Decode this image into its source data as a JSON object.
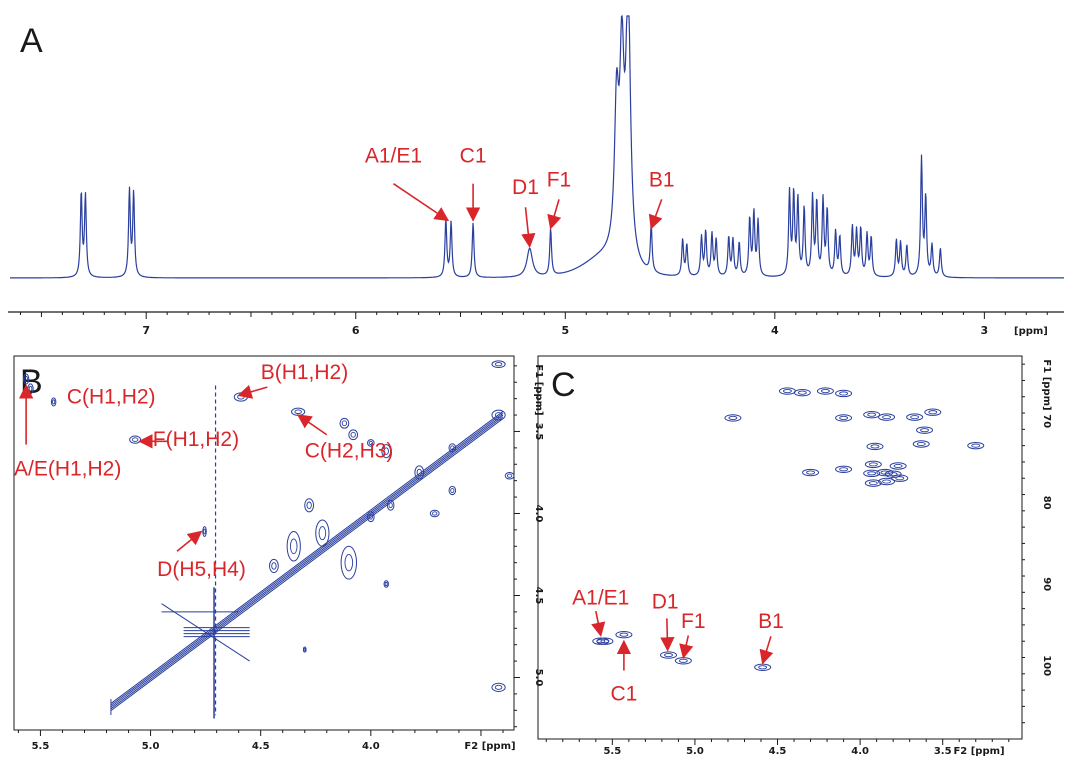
{
  "colors": {
    "spectrum": "#2a3f9e",
    "contour": "#2a3f9e",
    "annotation": "#d9262a",
    "axis": "#1a1a1a"
  },
  "chart_data": [
    {
      "type": "line",
      "panel": "A",
      "xlabel": "[ppm]",
      "xlim": [
        7.65,
        2.62
      ],
      "x_ticks": [
        7,
        6,
        5,
        4,
        3
      ],
      "peaks": [
        {
          "ppm": 7.29,
          "h": 0.31
        },
        {
          "ppm": 7.31,
          "h": 0.32
        },
        {
          "ppm": 7.06,
          "h": 0.32
        },
        {
          "ppm": 7.08,
          "h": 0.33
        },
        {
          "ppm": 5.57,
          "h": 0.22
        },
        {
          "ppm": 5.545,
          "h": 0.21
        },
        {
          "ppm": 5.44,
          "h": 0.21
        },
        {
          "ppm": 5.17,
          "h": 0.11,
          "w": 0.016
        },
        {
          "ppm": 5.07,
          "h": 0.18
        },
        {
          "ppm": 4.755,
          "h": 0.55,
          "w": 0.012
        },
        {
          "ppm": 4.7,
          "h": 1.0,
          "w": 0.013
        },
        {
          "ppm": 4.73,
          "h": 0.7,
          "w": 0.012
        },
        {
          "ppm": 4.59,
          "h": 0.18
        },
        {
          "ppm": 4.44,
          "h": 0.14
        },
        {
          "ppm": 4.42,
          "h": 0.12
        },
        {
          "ppm": 4.35,
          "h": 0.15
        },
        {
          "ppm": 4.33,
          "h": 0.17
        },
        {
          "ppm": 4.3,
          "h": 0.16
        },
        {
          "ppm": 4.28,
          "h": 0.14
        },
        {
          "ppm": 4.22,
          "h": 0.15
        },
        {
          "ppm": 4.2,
          "h": 0.14
        },
        {
          "ppm": 4.17,
          "h": 0.13
        },
        {
          "ppm": 4.12,
          "h": 0.22
        },
        {
          "ppm": 4.1,
          "h": 0.24
        },
        {
          "ppm": 4.08,
          "h": 0.21
        },
        {
          "ppm": 3.93,
          "h": 0.32
        },
        {
          "ppm": 3.91,
          "h": 0.31
        },
        {
          "ppm": 3.89,
          "h": 0.29
        },
        {
          "ppm": 3.86,
          "h": 0.26
        },
        {
          "ppm": 3.82,
          "h": 0.3
        },
        {
          "ppm": 3.8,
          "h": 0.28
        },
        {
          "ppm": 3.77,
          "h": 0.29
        },
        {
          "ppm": 3.75,
          "h": 0.25
        },
        {
          "ppm": 3.71,
          "h": 0.17
        },
        {
          "ppm": 3.69,
          "h": 0.15
        },
        {
          "ppm": 3.63,
          "h": 0.19
        },
        {
          "ppm": 3.61,
          "h": 0.17
        },
        {
          "ppm": 3.59,
          "h": 0.18
        },
        {
          "ppm": 3.56,
          "h": 0.16
        },
        {
          "ppm": 3.54,
          "h": 0.15
        },
        {
          "ppm": 3.42,
          "h": 0.14
        },
        {
          "ppm": 3.4,
          "h": 0.13
        },
        {
          "ppm": 3.37,
          "h": 0.12
        },
        {
          "ppm": 3.3,
          "h": 0.45
        },
        {
          "ppm": 3.28,
          "h": 0.3
        },
        {
          "ppm": 3.25,
          "h": 0.12
        },
        {
          "ppm": 3.21,
          "h": 0.11
        }
      ],
      "broad": [
        {
          "ppm": 4.8,
          "h": 0.05,
          "w": 0.12
        },
        {
          "ppm": 4.85,
          "h": 0.025,
          "w": 0.18
        }
      ],
      "annotations": [
        {
          "label": "A1/E1",
          "ppm": 5.56,
          "text_ppm": 5.82,
          "text_h": 0.44,
          "tail_h": 0.36,
          "head_h": 0.22
        },
        {
          "label": "C1",
          "ppm": 5.44,
          "text_ppm": 5.44,
          "text_h": 0.44,
          "tail_h": 0.36,
          "head_h": 0.22
        },
        {
          "label": "D1",
          "ppm": 5.17,
          "text_ppm": 5.19,
          "text_h": 0.32,
          "tail_h": 0.27,
          "head_h": 0.12
        },
        {
          "label": "F1",
          "ppm": 5.07,
          "text_ppm": 5.03,
          "text_h": 0.35,
          "tail_h": 0.3,
          "head_h": 0.19
        },
        {
          "label": "B1",
          "ppm": 4.59,
          "text_ppm": 4.54,
          "text_h": 0.35,
          "tail_h": 0.3,
          "head_h": 0.19
        }
      ]
    },
    {
      "type": "heatmap",
      "panel": "B",
      "description": "COSY contour plot",
      "xlabel": "F2 [ppm]",
      "ylabel": "F1 [ppm]",
      "xlim": [
        5.62,
        3.35
      ],
      "ylim": [
        3.04,
        5.32
      ],
      "x_ticks": [
        5.5,
        5.0,
        4.5,
        4.0
      ],
      "y_ticks": [
        3.5,
        4.0,
        4.5,
        5.0
      ],
      "diagonal": [
        5.18,
        3.4
      ],
      "crosspeaks": [
        {
          "x": 5.565,
          "y": 3.18,
          "rx": 0.012,
          "ry": 0.03
        },
        {
          "x": 5.545,
          "y": 3.24,
          "rx": 0.012,
          "ry": 0.03
        },
        {
          "x": 5.44,
          "y": 3.32,
          "rx": 0.01,
          "ry": 0.025
        },
        {
          "x": 5.07,
          "y": 3.55,
          "rx": 0.025,
          "ry": 0.022
        },
        {
          "x": 4.59,
          "y": 3.29,
          "rx": 0.03,
          "ry": 0.025
        },
        {
          "x": 4.33,
          "y": 3.38,
          "rx": 0.03,
          "ry": 0.022
        },
        {
          "x": 4.755,
          "y": 4.11,
          "rx": 0.008,
          "ry": 0.03
        },
        {
          "x": 4.12,
          "y": 3.45,
          "rx": 0.02,
          "ry": 0.03
        },
        {
          "x": 4.08,
          "y": 3.52,
          "rx": 0.02,
          "ry": 0.03
        },
        {
          "x": 3.93,
          "y": 3.62,
          "rx": 0.02,
          "ry": 0.04
        },
        {
          "x": 3.91,
          "y": 3.95,
          "rx": 0.015,
          "ry": 0.03
        },
        {
          "x": 3.93,
          "y": 4.43,
          "rx": 0.01,
          "ry": 0.02
        },
        {
          "x": 3.71,
          "y": 4.0,
          "rx": 0.02,
          "ry": 0.02
        },
        {
          "x": 3.63,
          "y": 3.86,
          "rx": 0.015,
          "ry": 0.025
        },
        {
          "x": 3.63,
          "y": 3.6,
          "rx": 0.015,
          "ry": 0.025
        },
        {
          "x": 3.42,
          "y": 3.09,
          "rx": 0.03,
          "ry": 0.02
        },
        {
          "x": 3.42,
          "y": 3.4,
          "rx": 0.03,
          "ry": 0.03
        },
        {
          "x": 3.37,
          "y": 3.77,
          "rx": 0.02,
          "ry": 0.02
        },
        {
          "x": 3.42,
          "y": 5.06,
          "rx": 0.03,
          "ry": 0.025
        },
        {
          "x": 4.22,
          "y": 4.12,
          "rx": 0.03,
          "ry": 0.08
        },
        {
          "x": 4.35,
          "y": 4.2,
          "rx": 0.03,
          "ry": 0.09
        },
        {
          "x": 4.1,
          "y": 4.3,
          "rx": 0.035,
          "ry": 0.1
        },
        {
          "x": 4.44,
          "y": 4.32,
          "rx": 0.02,
          "ry": 0.04
        },
        {
          "x": 4.28,
          "y": 3.95,
          "rx": 0.02,
          "ry": 0.04
        },
        {
          "x": 4.0,
          "y": 4.02,
          "rx": 0.015,
          "ry": 0.03
        },
        {
          "x": 4.3,
          "y": 4.83,
          "rx": 0.006,
          "ry": 0.015
        },
        {
          "x": 4.0,
          "y": 3.57,
          "rx": 0.015,
          "ry": 0.02
        },
        {
          "x": 3.78,
          "y": 3.75,
          "rx": 0.02,
          "ry": 0.04
        }
      ],
      "annotations": [
        {
          "label": "B(H1,H2)",
          "tx": 4.5,
          "ty": 3.18,
          "hx": 4.6,
          "hy": 3.28,
          "tailx": 4.47,
          "taily": 3.23
        },
        {
          "label": "C(H1,H2)",
          "tx": 5.38,
          "ty": 3.33,
          "hx": 5.44,
          "hy": 3.32,
          "tailx": 5.44,
          "taily": 3.32,
          "no_arrow": true
        },
        {
          "label": "F(H1,H2)",
          "tx": 4.99,
          "ty": 3.59,
          "hx": 5.05,
          "hy": 3.56,
          "tailx": 4.92,
          "taily": 3.56
        },
        {
          "label": "C(H2,H3)",
          "tx": 4.3,
          "ty": 3.66,
          "hx": 4.33,
          "hy": 3.4,
          "tailx": 4.2,
          "taily": 3.52
        },
        {
          "label": "A/E(H1,H2)",
          "tx": 5.62,
          "ty": 3.77,
          "hx": 5.565,
          "hy": 3.22,
          "tailx": 5.565,
          "taily": 3.58
        },
        {
          "label": "D(H5,H4)",
          "tx": 4.97,
          "ty": 4.38,
          "hx": 4.77,
          "hy": 4.11,
          "tailx": 4.88,
          "taily": 4.23
        }
      ]
    },
    {
      "type": "heatmap",
      "panel": "C",
      "description": "HSQC contour plot",
      "xlabel": "F2 [ppm]",
      "ylabel": "F1 [ppm]",
      "xlim": [
        5.95,
        3.02
      ],
      "ylim": [
        62.0,
        109.0
      ],
      "x_ticks": [
        5.5,
        5.0,
        4.5,
        4.0,
        3.5
      ],
      "y_ticks": [
        70,
        80,
        90,
        100
      ],
      "crosspeaks": [
        {
          "x": 5.57,
          "y": 97.0
        },
        {
          "x": 5.545,
          "y": 97.0
        },
        {
          "x": 5.43,
          "y": 96.2
        },
        {
          "x": 5.16,
          "y": 98.7
        },
        {
          "x": 5.07,
          "y": 99.4
        },
        {
          "x": 4.59,
          "y": 100.2
        },
        {
          "x": 4.77,
          "y": 69.6
        },
        {
          "x": 4.44,
          "y": 66.3
        },
        {
          "x": 4.35,
          "y": 66.5
        },
        {
          "x": 4.21,
          "y": 66.3
        },
        {
          "x": 4.1,
          "y": 66.6
        },
        {
          "x": 4.1,
          "y": 69.6
        },
        {
          "x": 3.93,
          "y": 69.2
        },
        {
          "x": 3.84,
          "y": 69.5
        },
        {
          "x": 3.67,
          "y": 69.5
        },
        {
          "x": 3.61,
          "y": 71.1
        },
        {
          "x": 3.56,
          "y": 68.9
        },
        {
          "x": 3.63,
          "y": 72.8
        },
        {
          "x": 3.3,
          "y": 73.0
        },
        {
          "x": 3.91,
          "y": 73.1
        },
        {
          "x": 3.92,
          "y": 75.3
        },
        {
          "x": 4.3,
          "y": 76.3
        },
        {
          "x": 4.1,
          "y": 75.9
        },
        {
          "x": 3.93,
          "y": 76.4
        },
        {
          "x": 3.85,
          "y": 76.3
        },
        {
          "x": 3.8,
          "y": 76.5
        },
        {
          "x": 3.76,
          "y": 77.0
        },
        {
          "x": 3.92,
          "y": 77.6
        },
        {
          "x": 3.84,
          "y": 77.4
        },
        {
          "x": 3.77,
          "y": 75.5
        }
      ],
      "annotations": [
        {
          "label": "A1/E1",
          "tx": 5.57,
          "ty": 92.5,
          "hx": 5.57,
          "hy": 96.3,
          "tailx": 5.6,
          "taily": 93.3,
          "anchor": "middle"
        },
        {
          "label": "D1",
          "tx": 5.18,
          "ty": 93.0,
          "hx": 5.165,
          "hy": 98.1,
          "tailx": 5.17,
          "taily": 94.2,
          "anchor": "middle"
        },
        {
          "label": "F1",
          "tx": 5.01,
          "ty": 95.4,
          "hx": 5.07,
          "hy": 99.0,
          "tailx": 5.04,
          "taily": 96.3,
          "anchor": "middle"
        },
        {
          "label": "B1",
          "tx": 4.54,
          "ty": 95.4,
          "hx": 4.59,
          "hy": 99.7,
          "tailx": 4.54,
          "taily": 96.4,
          "anchor": "middle"
        },
        {
          "label": "C1",
          "tx": 5.43,
          "ty": 104.3,
          "hx": 5.43,
          "hy": 97.0,
          "tailx": 5.43,
          "taily": 100.6,
          "anchor": "middle"
        }
      ]
    }
  ]
}
